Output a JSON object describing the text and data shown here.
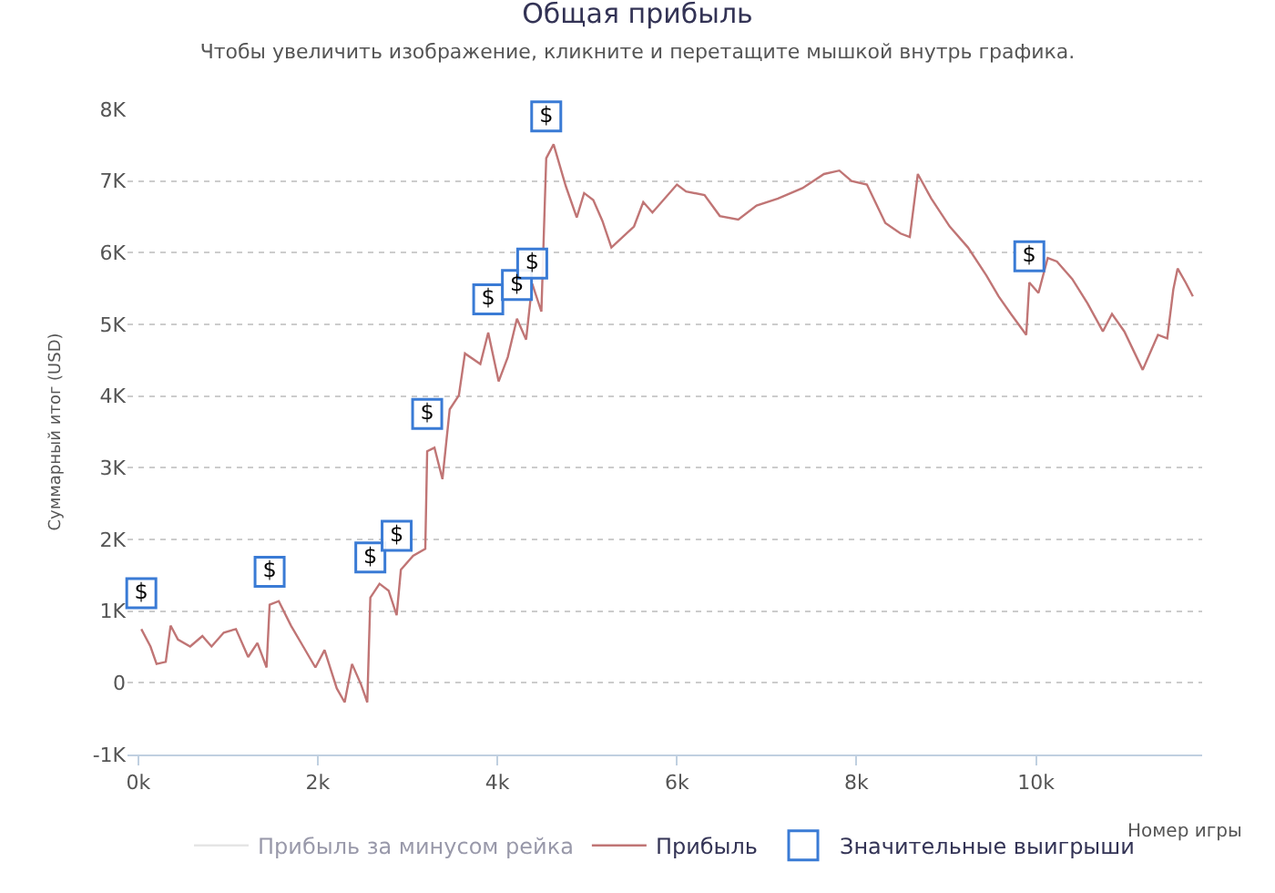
{
  "chart_data": {
    "type": "line",
    "title": "Общая прибыль",
    "subtitle": "Чтобы увеличить изображение, кликните и перетащите мышкой внутрь графика.",
    "xlabel": "Номер игры",
    "ylabel": "Суммарный итог (USD)",
    "xlim": [
      -120,
      11850
    ],
    "ylim": [
      -1000,
      8000
    ],
    "xticks": [
      {
        "value": 0,
        "label": "0k"
      },
      {
        "value": 2000,
        "label": "2k"
      },
      {
        "value": 4000,
        "label": "4k"
      },
      {
        "value": 6000,
        "label": "6k"
      },
      {
        "value": 8000,
        "label": "8k"
      },
      {
        "value": 10000,
        "label": "10k"
      }
    ],
    "yticks": [
      {
        "value": -1000,
        "label": "-1K"
      },
      0,
      {
        "value": 1000,
        "label": "1K"
      },
      {
        "value": 2000,
        "label": "2K"
      },
      {
        "value": 3000,
        "label": "3K"
      },
      {
        "value": 4000,
        "label": "4K"
      },
      {
        "value": 5000,
        "label": "5K"
      },
      {
        "value": 6000,
        "label": "6K"
      },
      {
        "value": 7000,
        "label": "7K"
      },
      {
        "value": 8000,
        "label": "8K"
      }
    ],
    "grid": "y",
    "legend": "bottom",
    "marker": "none",
    "line_style": "solid",
    "series": [
      {
        "name": "Прибыль за минусом рейка",
        "color": "#cccccc"
      },
      {
        "name": "Прибыль",
        "color": "#c07575",
        "x": [
          34,
          136,
          204,
          306,
          360,
          442,
          578,
          714,
          816,
          952,
          1088,
          1224,
          1327,
          1429,
          1463,
          1565,
          1701,
          1837,
          1973,
          2075,
          2211,
          2299,
          2381,
          2483,
          2551,
          2585,
          2687,
          2789,
          2878,
          2925,
          3061,
          3197,
          3218,
          3299,
          3388,
          3469,
          3571,
          3639,
          3810,
          3898,
          4014,
          4116,
          4218,
          4320,
          4388,
          4490,
          4544,
          4626,
          4762,
          4884,
          4966,
          5068,
          5170,
          5270,
          5522,
          5625,
          5727,
          6000,
          6102,
          6307,
          6478,
          6683,
          6887,
          7126,
          7399,
          7638,
          7809,
          7945,
          8116,
          8321,
          8491,
          8594,
          8683,
          8833,
          9038,
          9242,
          9447,
          9584,
          9720,
          9891,
          9925,
          10027,
          10130,
          10232,
          10403,
          10573,
          10744,
          10846,
          10983,
          11188,
          11290,
          11358,
          11461,
          11529,
          11577,
          11666,
          11747
        ],
        "values": [
          750,
          506,
          263,
          292,
          798,
          603,
          506,
          652,
          506,
          700,
          750,
          360,
          555,
          214,
          1090,
          1139,
          798,
          506,
          214,
          457,
          -78,
          -272,
          263,
          -29,
          -272,
          1187,
          1382,
          1285,
          944,
          1577,
          1771,
          1869,
          3231,
          3280,
          2842,
          3815,
          4010,
          4594,
          4448,
          4886,
          4204,
          4545,
          5080,
          4788,
          5567,
          5178,
          7319,
          7513,
          6929,
          6491,
          6832,
          6735,
          6443,
          6073,
          6366,
          6707,
          6561,
          6951,
          6854,
          6805,
          6512,
          6463,
          6659,
          6756,
          6902,
          7098,
          7146,
          7000,
          6951,
          6415,
          6268,
          6220,
          7098,
          6756,
          6366,
          6073,
          5683,
          5390,
          5146,
          4854,
          5585,
          5439,
          5927,
          5878,
          5634,
          5293,
          4902,
          5146,
          4902,
          4366,
          4659,
          4854,
          4805,
          5488,
          5780,
          5585,
          5390
        ]
      },
      {
        "name": "Значительные выигрыши",
        "color": "#3a7bd5",
        "type": "scatter",
        "marker": "square",
        "x": [
          34,
          1463,
          2585,
          2878,
          3218,
          3898,
          4218,
          4388,
          4544,
          9925
        ],
        "values": [
          1250,
          1550,
          1750,
          2050,
          3750,
          5350,
          5550,
          5850,
          7900,
          5950
        ],
        "value_labels": [
          "$",
          "$",
          "$",
          "$",
          "$",
          "$",
          "$",
          "$",
          "$",
          "$"
        ]
      }
    ]
  }
}
